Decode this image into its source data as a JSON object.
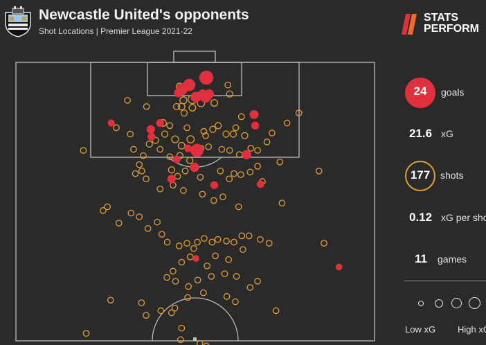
{
  "header": {
    "title": "Newcastle United's opponents",
    "subtitle": "Shot Locations | Premier League 2021-22",
    "brand_line1": "STATS",
    "brand_line2": "PERFORM"
  },
  "stats": {
    "goals_value": "24",
    "goals_label": "goals",
    "xg_value": "21.6",
    "xg_label": "xG",
    "shots_value": "177",
    "shots_label": "shots",
    "xg_per_shot_value": "0.12",
    "xg_per_shot_label": "xG per shot",
    "games_value": "11",
    "games_label": "games"
  },
  "legend": {
    "low_label": "Low xG",
    "high_label": "High xG"
  },
  "colors": {
    "background": "#2a2a2a",
    "pitch_lines": "#bdbdbd",
    "goal": "#e1303d",
    "shot": "#e3a032"
  },
  "chart_data": {
    "type": "scatter",
    "title": "Newcastle United's opponents",
    "subtitle": "Shot Locations | Premier League 2021-22",
    "x_axis": "pitch width (0 = left touchline, 100 = right touchline)",
    "y_axis": "distance from goal line (yards)",
    "size_encodes": "xG",
    "series": [
      {
        "name": "goals",
        "points": [
          [
            53.1,
            2.9,
            0.45
          ],
          [
            48.3,
            4.3,
            0.3
          ],
          [
            46.3,
            5.1,
            0.25
          ],
          [
            52.1,
            6.0,
            0.12
          ],
          [
            53.9,
            6.0,
            0.12
          ],
          [
            45.3,
            5.8,
            0.1
          ],
          [
            52.9,
            6.5,
            0.25
          ],
          [
            50.2,
            6.6,
            0.18
          ],
          [
            66.4,
            9.9,
            0.1
          ],
          [
            26.6,
            11.5,
            0.04
          ],
          [
            40.2,
            11.5,
            0.06
          ],
          [
            37.6,
            12.7,
            0.08
          ],
          [
            50.5,
            16.7,
            0.35
          ],
          [
            66.7,
            12.0,
            0.06
          ],
          [
            37.8,
            14.1,
            0.06
          ],
          [
            64.3,
            17.5,
            0.12
          ],
          [
            48.0,
            16.3,
            0.05
          ],
          [
            44.8,
            18.4,
            0.06
          ],
          [
            49.8,
            19.9,
            0.12
          ],
          [
            43.4,
            22.1,
            0.08
          ],
          [
            55.3,
            23.3,
            0.06
          ],
          [
            68.2,
            23.1,
            0.05
          ],
          [
            50.2,
            37.2,
            0.03
          ],
          [
            90.1,
            38.8,
            0.03
          ]
        ]
      },
      {
        "name": "shots",
        "points": [
          [
            45.7,
            4.6,
            0.06
          ],
          [
            49.2,
            7.0,
            0.12
          ],
          [
            46.7,
            7.2,
            0.06
          ],
          [
            51.6,
            7.7,
            0.08
          ],
          [
            46.2,
            8.4,
            0.05
          ],
          [
            49.2,
            8.6,
            0.05
          ],
          [
            44.8,
            8.4,
            0.04
          ],
          [
            55.3,
            7.7,
            0.05
          ],
          [
            59.6,
            6.0,
            0.04
          ],
          [
            59.1,
            4.3,
            0.03
          ],
          [
            46.9,
            9.6,
            0.04
          ],
          [
            31.1,
            7.2,
            0.03
          ],
          [
            36.4,
            8.4,
            0.03
          ],
          [
            41.0,
            11.5,
            0.05
          ],
          [
            42.9,
            12.0,
            0.03
          ],
          [
            47.7,
            12.4,
            0.03
          ],
          [
            52.4,
            13.1,
            0.03
          ],
          [
            54.9,
            12.7,
            0.04
          ],
          [
            56.4,
            12.0,
            0.04
          ],
          [
            58.6,
            13.6,
            0.04
          ],
          [
            60.6,
            13.6,
            0.04
          ],
          [
            63.8,
            13.9,
            0.04
          ],
          [
            62.9,
            10.3,
            0.03
          ],
          [
            61.3,
            12.4,
            0.03
          ],
          [
            52.9,
            13.9,
            0.03
          ],
          [
            48.7,
            14.6,
            0.07
          ],
          [
            46.2,
            15.8,
            0.05
          ],
          [
            44.4,
            14.6,
            0.06
          ],
          [
            41.5,
            13.6,
            0.04
          ],
          [
            38.9,
            14.8,
            0.04
          ],
          [
            37.2,
            15.5,
            0.04
          ],
          [
            40.2,
            16.5,
            0.03
          ],
          [
            42.9,
            17.9,
            0.03
          ],
          [
            45.7,
            17.7,
            0.04
          ],
          [
            48.5,
            18.6,
            0.04
          ],
          [
            51.6,
            16.3,
            0.03
          ],
          [
            53.7,
            16.0,
            0.03
          ],
          [
            57.4,
            16.5,
            0.03
          ],
          [
            59.6,
            16.7,
            0.03
          ],
          [
            62.3,
            17.5,
            0.03
          ],
          [
            65.5,
            16.3,
            0.03
          ],
          [
            67.4,
            16.7,
            0.03
          ],
          [
            70.0,
            15.1,
            0.03
          ],
          [
            71.4,
            13.4,
            0.03
          ],
          [
            75.6,
            11.5,
            0.03
          ],
          [
            78.9,
            9.6,
            0.03
          ],
          [
            18.8,
            16.7,
            0.03
          ],
          [
            28.0,
            12.4,
            0.03
          ],
          [
            31.9,
            13.6,
            0.03
          ],
          [
            32.8,
            16.5,
            0.03
          ],
          [
            35.5,
            17.7,
            0.03
          ],
          [
            34.4,
            19.4,
            0.03
          ],
          [
            35.1,
            20.6,
            0.03
          ],
          [
            33.3,
            21.1,
            0.03
          ],
          [
            36.3,
            22.1,
            0.03
          ],
          [
            43.4,
            20.4,
            0.04
          ],
          [
            45.1,
            21.6,
            0.03
          ],
          [
            47.2,
            20.6,
            0.03
          ],
          [
            51.4,
            21.8,
            0.03
          ],
          [
            57.0,
            20.6,
            0.03
          ],
          [
            59.5,
            22.1,
            0.03
          ],
          [
            60.8,
            21.1,
            0.03
          ],
          [
            62.7,
            21.3,
            0.03
          ],
          [
            65.3,
            20.8,
            0.03
          ],
          [
            67.4,
            19.7,
            0.03
          ],
          [
            73.6,
            18.9,
            0.03
          ],
          [
            84.5,
            20.6,
            0.03
          ],
          [
            68.7,
            22.6,
            0.03
          ],
          [
            40.2,
            24.0,
            0.03
          ],
          [
            43.8,
            23.3,
            0.03
          ],
          [
            46.7,
            24.3,
            0.03
          ],
          [
            52.0,
            25.0,
            0.03
          ],
          [
            55.2,
            26.2,
            0.03
          ],
          [
            57.7,
            25.5,
            0.03
          ],
          [
            62.1,
            27.4,
            0.03
          ],
          [
            74.2,
            26.7,
            0.03
          ],
          [
            24.3,
            28.1,
            0.03
          ],
          [
            32.1,
            28.6,
            0.03
          ],
          [
            34.4,
            29.3,
            0.03
          ],
          [
            39.4,
            30.3,
            0.03
          ],
          [
            36.8,
            31.5,
            0.03
          ],
          [
            40.7,
            32.6,
            0.03
          ],
          [
            42.2,
            34.1,
            0.03
          ],
          [
            45.5,
            34.8,
            0.03
          ],
          [
            47.7,
            34.3,
            0.03
          ],
          [
            49.6,
            35.3,
            0.03
          ],
          [
            50.6,
            34.1,
            0.03
          ],
          [
            52.5,
            33.4,
            0.03
          ],
          [
            54.7,
            34.1,
            0.03
          ],
          [
            56.3,
            33.6,
            0.03
          ],
          [
            58.7,
            33.9,
            0.03
          ],
          [
            60.8,
            34.1,
            0.03
          ],
          [
            63.0,
            32.9,
            0.03
          ],
          [
            65.0,
            32.9,
            0.03
          ],
          [
            68.1,
            33.6,
            0.03
          ],
          [
            70.6,
            34.3,
            0.03
          ],
          [
            85.9,
            34.3,
            0.03
          ],
          [
            63.3,
            35.5,
            0.03
          ],
          [
            59.3,
            37.4,
            0.03
          ],
          [
            55.6,
            36.7,
            0.03
          ],
          [
            53.3,
            38.6,
            0.03
          ],
          [
            48.6,
            36.9,
            0.03
          ],
          [
            46.2,
            37.9,
            0.03
          ],
          [
            43.8,
            39.6,
            0.03
          ],
          [
            42.1,
            40.8,
            0.03
          ],
          [
            44.5,
            41.5,
            0.03
          ],
          [
            48.1,
            42.5,
            0.03
          ],
          [
            50.7,
            41.3,
            0.03
          ],
          [
            54.5,
            40.6,
            0.03
          ],
          [
            58.2,
            40.1,
            0.03
          ],
          [
            61.5,
            40.6,
            0.03
          ],
          [
            65.3,
            42.7,
            0.03
          ],
          [
            67.4,
            41.5,
            0.03
          ],
          [
            61.2,
            45.4,
            0.03
          ],
          [
            58.8,
            44.4,
            0.03
          ],
          [
            52.3,
            43.7,
            0.03
          ],
          [
            47.9,
            44.6,
            0.03
          ],
          [
            44.3,
            46.6,
            0.03
          ],
          [
            40.4,
            47.1,
            0.03
          ],
          [
            36.3,
            48.0,
            0.03
          ],
          [
            35.0,
            45.6,
            0.03
          ],
          [
            26.4,
            45.1,
            0.03
          ],
          [
            72.5,
            47.1,
            0.03
          ],
          [
            19.6,
            51.4,
            0.03
          ],
          [
            43.4,
            47.5,
            0.03
          ],
          [
            46.2,
            50.4,
            0.03
          ],
          [
            45.9,
            52.6,
            0.03
          ],
          [
            45.5,
            54.8,
            0.03
          ],
          [
            51.3,
            53.3,
            0.03
          ],
          [
            53.1,
            53.8,
            0.03
          ],
          [
            46.9,
            56.2,
            0.03
          ],
          [
            28.7,
            30.5,
            0.03
          ],
          [
            25.5,
            27.4,
            0.03
          ]
        ]
      }
    ]
  }
}
